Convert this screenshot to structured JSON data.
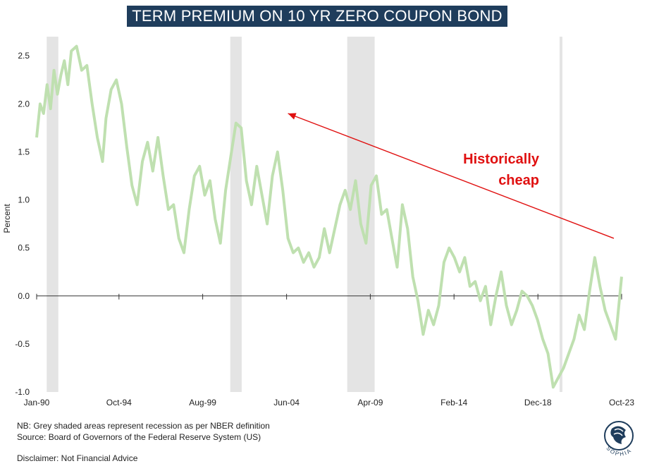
{
  "title": "TERM PREMIUM ON 10 YR ZERO COUPON BOND",
  "chart_data": {
    "type": "line",
    "title": "TERM PREMIUM ON 10 YR ZERO COUPON BOND",
    "ylabel": "Percent",
    "xlabel": "",
    "x_tick_labels": [
      "Jan-90",
      "Oct-94",
      "Aug-99",
      "Jun-04",
      "Apr-09",
      "Feb-14",
      "Dec-18",
      "Oct-23"
    ],
    "x_tick_years": [
      1990.0,
      1994.75,
      1999.58,
      2004.42,
      2009.25,
      2014.08,
      2018.92,
      2023.75
    ],
    "y_ticks": [
      "2.5",
      "2.0",
      "1.5",
      "1.0",
      "0.5",
      "0.0",
      "-0.5",
      "-1.0"
    ],
    "ylim": [
      -1.0,
      2.7
    ],
    "xlim": [
      1990.0,
      2023.75
    ],
    "series_color": "#bfe0b0",
    "recession_color": "#e4e4e4",
    "recessions": [
      [
        1990.58,
        1991.25
      ],
      [
        2001.17,
        2001.83
      ],
      [
        2007.92,
        2009.5
      ],
      [
        2020.17,
        2020.33
      ]
    ],
    "series": [
      {
        "x": [
          1990.0,
          1990.2,
          1990.4,
          1990.6,
          1990.8,
          1991.0,
          1991.2,
          1991.4,
          1991.6,
          1991.8,
          1992.0,
          1992.3,
          1992.6,
          1992.9,
          1993.2,
          1993.5,
          1993.8,
          1994.0,
          1994.3,
          1994.6,
          1994.9,
          1995.2,
          1995.5,
          1995.8,
          1996.1,
          1996.4,
          1996.7,
          1997.0,
          1997.3,
          1997.6,
          1997.9,
          1998.2,
          1998.5,
          1998.8,
          1999.1,
          1999.4,
          1999.7,
          2000.0,
          2000.3,
          2000.6,
          2000.9,
          2001.2,
          2001.5,
          2001.8,
          2002.1,
          2002.4,
          2002.7,
          2003.0,
          2003.3,
          2003.6,
          2003.9,
          2004.2,
          2004.5,
          2004.8,
          2005.1,
          2005.4,
          2005.7,
          2006.0,
          2006.3,
          2006.6,
          2006.9,
          2007.2,
          2007.5,
          2007.8,
          2008.1,
          2008.4,
          2008.7,
          2009.0,
          2009.3,
          2009.6,
          2009.9,
          2010.2,
          2010.5,
          2010.8,
          2011.1,
          2011.4,
          2011.7,
          2012.0,
          2012.3,
          2012.6,
          2012.9,
          2013.2,
          2013.5,
          2013.8,
          2014.1,
          2014.4,
          2014.7,
          2015.0,
          2015.3,
          2015.6,
          2015.9,
          2016.2,
          2016.5,
          2016.8,
          2017.1,
          2017.4,
          2017.7,
          2018.0,
          2018.3,
          2018.6,
          2018.9,
          2019.2,
          2019.5,
          2019.8,
          2020.1,
          2020.4,
          2020.7,
          2021.0,
          2021.3,
          2021.6,
          2021.9,
          2022.2,
          2022.5,
          2022.8,
          2023.1,
          2023.4,
          2023.75
        ],
        "values": [
          1.65,
          2.0,
          1.9,
          2.2,
          1.95,
          2.35,
          2.1,
          2.3,
          2.45,
          2.2,
          2.55,
          2.6,
          2.35,
          2.4,
          2.0,
          1.65,
          1.4,
          1.85,
          2.15,
          2.25,
          2.0,
          1.55,
          1.15,
          0.95,
          1.4,
          1.6,
          1.3,
          1.65,
          1.25,
          0.9,
          0.95,
          0.6,
          0.45,
          0.9,
          1.25,
          1.35,
          1.05,
          1.2,
          0.8,
          0.55,
          1.1,
          1.45,
          1.8,
          1.75,
          1.2,
          0.95,
          1.35,
          1.05,
          0.75,
          1.25,
          1.5,
          1.1,
          0.6,
          0.45,
          0.5,
          0.35,
          0.45,
          0.3,
          0.4,
          0.7,
          0.45,
          0.7,
          0.95,
          1.1,
          0.9,
          1.2,
          0.75,
          0.55,
          1.15,
          1.25,
          0.85,
          0.9,
          0.6,
          0.3,
          0.95,
          0.7,
          0.2,
          -0.05,
          -0.4,
          -0.15,
          -0.3,
          -0.1,
          0.35,
          0.5,
          0.4,
          0.25,
          0.4,
          0.1,
          0.15,
          -0.05,
          0.1,
          -0.3,
          0.0,
          0.25,
          -0.1,
          -0.3,
          -0.15,
          0.05,
          0.0,
          -0.1,
          -0.25,
          -0.45,
          -0.6,
          -0.95,
          -0.85,
          -0.75,
          -0.6,
          -0.45,
          -0.2,
          -0.35,
          0.05,
          0.4,
          0.1,
          -0.15,
          -0.3,
          -0.45,
          0.2
        ]
      }
    ],
    "annotation": {
      "lines": [
        "Historically",
        "cheap"
      ],
      "color": "#e01010",
      "arrow_from": [
        2023.3,
        0.6
      ],
      "arrow_to": [
        2004.5,
        1.9
      ]
    }
  },
  "notes": {
    "nb": "NB: Grey shaded areas represent recession as per NBER definition",
    "source": "Source: Board of Governors of the Federal Reserve System (US)",
    "disclaimer": "Disclaimer: Not Financial Advice"
  },
  "logo": {
    "text": "SOPHIA"
  }
}
